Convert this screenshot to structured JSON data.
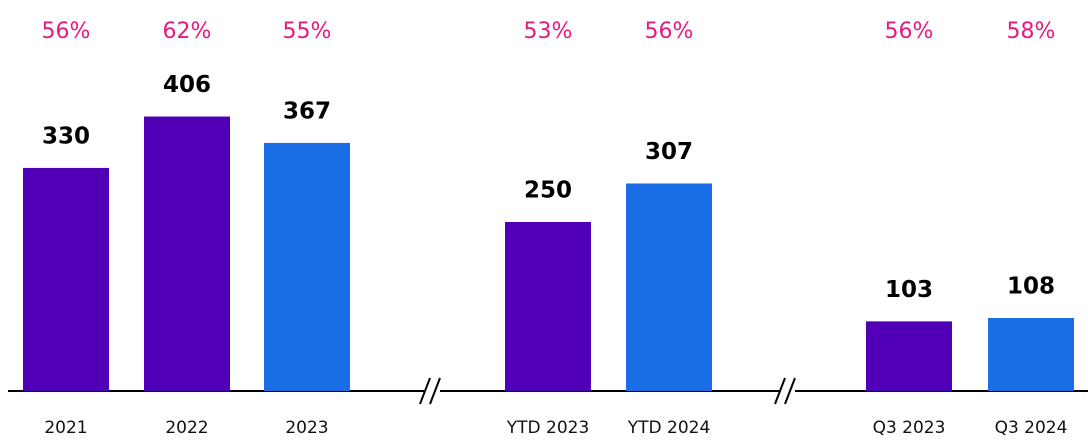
{
  "chart_data": {
    "type": "bar",
    "categories": [
      "2021",
      "2022",
      "2023",
      "YTD 2023",
      "YTD 2024",
      "Q3 2023",
      "Q3 2024"
    ],
    "values": [
      330,
      406,
      367,
      250,
      307,
      103,
      108
    ],
    "colors": [
      "#5200b8",
      "#5200b8",
      "#1b6de6",
      "#5200b8",
      "#1b6de6",
      "#5200b8",
      "#1b6de6"
    ],
    "rates": [
      56,
      62,
      55,
      53,
      56,
      56,
      58
    ],
    "rate_labels": [
      "56%",
      "62%",
      "55%",
      "53%",
      "56%",
      "56%",
      "58%"
    ]
  }
}
